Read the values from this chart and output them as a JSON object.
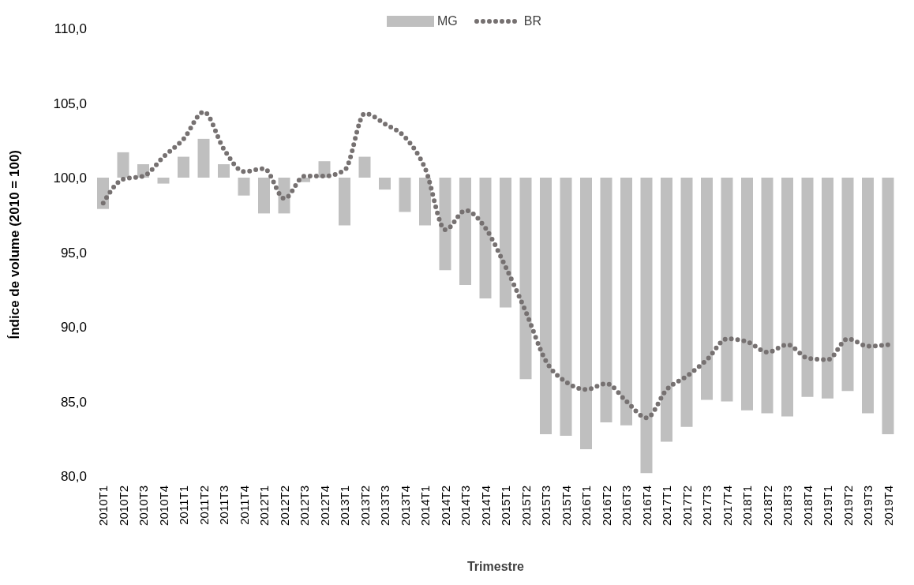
{
  "chart_data": {
    "type": "bar",
    "xlabel": "Trimestre",
    "ylabel": "Índice de volume (2010 = 100)",
    "categories": [
      "2010T1",
      "2010T2",
      "2010T3",
      "2010T4",
      "2011T1",
      "2011T2",
      "2011T3",
      "2011T4",
      "2012T1",
      "2012T2",
      "2012T3",
      "2012T4",
      "2013T1",
      "2013T2",
      "2013T3",
      "2013T4",
      "2014T1",
      "2014T2",
      "2014T3",
      "2014T4",
      "2015T1",
      "2015T2",
      "2015T3",
      "2015T4",
      "2016T1",
      "2016T2",
      "2016T3",
      "2016T4",
      "2017T1",
      "2017T2",
      "2017T3",
      "2017T4",
      "2018T1",
      "2018T2",
      "2018T3",
      "2018T4",
      "2019T1",
      "2019T2",
      "2019T3",
      "2019T4"
    ],
    "series": [
      {
        "name": "MG",
        "color": "#bfbfbf",
        "base": [
          100,
          100,
          100,
          100,
          100,
          100,
          100,
          100,
          100,
          100,
          100,
          100,
          100,
          100,
          100,
          100,
          100,
          100,
          100,
          100,
          100,
          100,
          100,
          100,
          100,
          100,
          100,
          100,
          100,
          100,
          100,
          100,
          100,
          100,
          100,
          100,
          100,
          100,
          100,
          100
        ],
        "values": [
          -2.1,
          1.7,
          0.9,
          -0.4,
          1.4,
          2.6,
          0.9,
          -1.2,
          -2.4,
          -2.4,
          -0.3,
          1.1,
          -3.2,
          1.4,
          -0.8,
          -2.3,
          -3.2,
          -6.2,
          -7.2,
          -8.1,
          -8.7,
          -13.5,
          -17.2,
          -17.3,
          -18.2,
          -16.4,
          -16.6,
          -19.8,
          -17.7,
          -16.7,
          -14.9,
          -15.0,
          -15.6,
          -15.8,
          -16.0,
          -14.7,
          -14.8,
          -14.3,
          -15.8,
          -17.2
        ]
      },
      {
        "name": "BR",
        "type": "line",
        "color": "#767171",
        "line_style": "dotted",
        "marker": "none",
        "values": [
          98.3,
          99.9,
          100.1,
          101.4,
          102.6,
          104.4,
          101.9,
          100.4,
          100.6,
          98.6,
          100.1,
          100.1,
          100.5,
          104.3,
          103.6,
          102.7,
          100.6,
          96.5,
          97.8,
          96.6,
          94.0,
          91.0,
          87.7,
          86.3,
          85.8,
          86.2,
          85.0,
          83.9,
          85.8,
          86.7,
          87.8,
          89.2,
          89.0,
          88.3,
          88.8,
          87.9,
          87.8,
          89.2,
          88.7,
          88.8
        ]
      }
    ],
    "ylim": [
      80,
      110
    ],
    "yticks": [
      {
        "value": 80,
        "label": "80,0"
      },
      {
        "value": 85,
        "label": "85,0"
      },
      {
        "value": 90,
        "label": "90,0"
      },
      {
        "value": 95,
        "label": "95,0"
      },
      {
        "value": 100,
        "label": "100,0"
      },
      {
        "value": 105,
        "label": "105,0"
      },
      {
        "value": 110,
        "label": "110,0"
      }
    ],
    "grid": false,
    "legend": "top"
  }
}
